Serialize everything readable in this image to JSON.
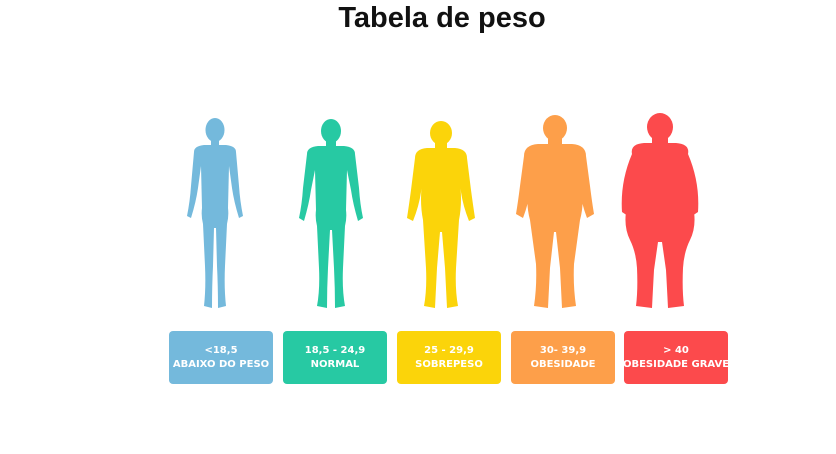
{
  "title": "Tabela de peso",
  "categories": [
    {
      "range": "<18,5",
      "label": "ABAIXO DO PESO",
      "color": "#74b9dc",
      "icon": "thin-body-silhouette-icon"
    },
    {
      "range": "18,5 - 24,9",
      "label": "NORMAL",
      "color": "#27c9a3",
      "icon": "normal-body-silhouette-icon"
    },
    {
      "range": "25 - 29,9",
      "label": "SOBREPESO",
      "color": "#fbd40a",
      "icon": "overweight-body-silhouette-icon"
    },
    {
      "range": "30- 39,9",
      "label": "OBESIDADE",
      "color": "#fd9f4a",
      "icon": "obese-body-silhouette-icon"
    },
    {
      "range": "> 40",
      "label": "OBESIDADE GRAVE",
      "color": "#fc4a4c",
      "icon": "severely-obese-body-silhouette-icon"
    }
  ]
}
